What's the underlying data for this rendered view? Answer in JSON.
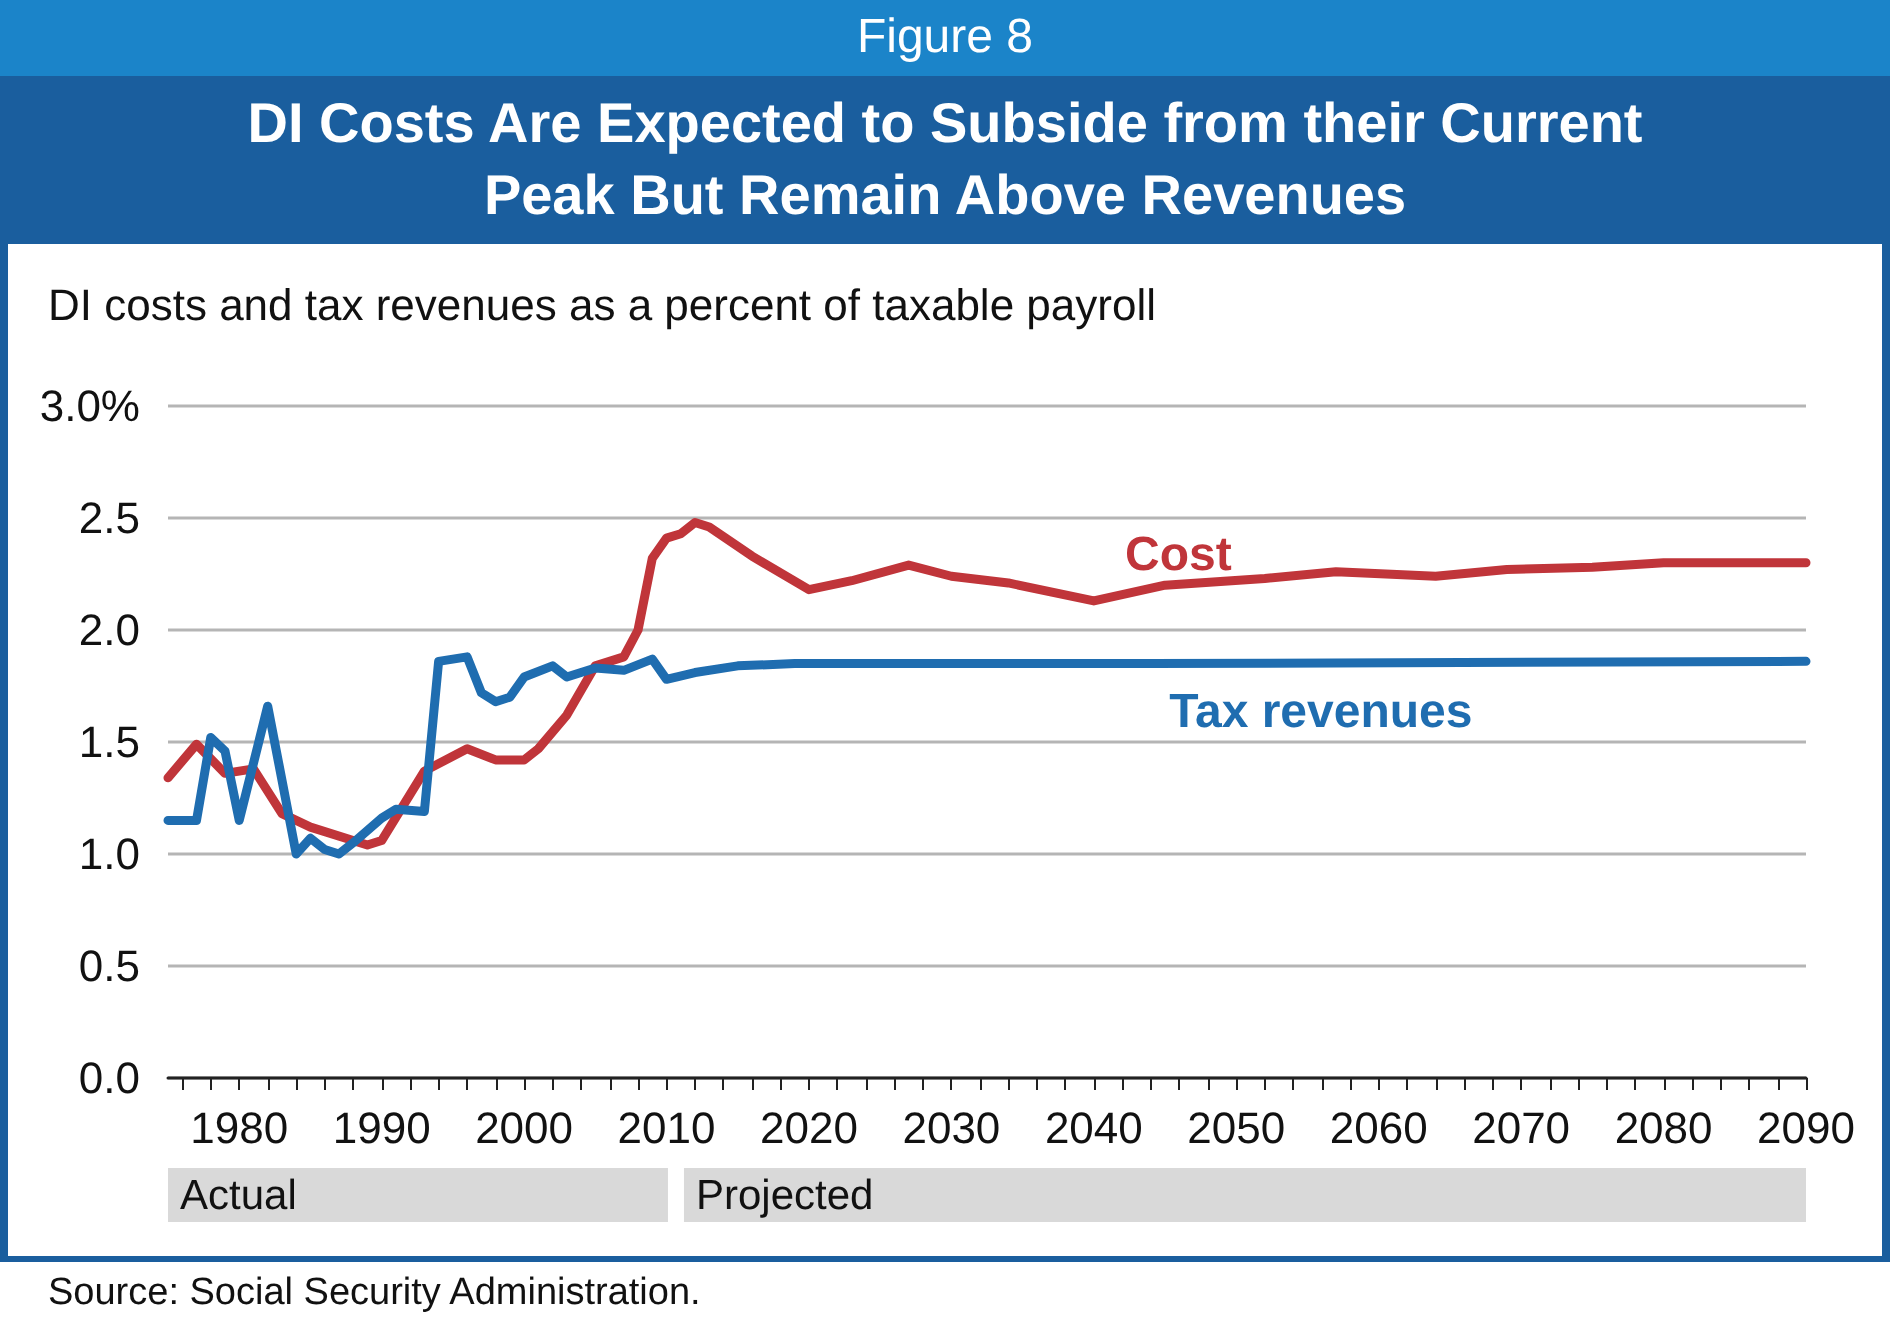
{
  "chart_data": {
    "type": "line",
    "subtitle": "Figure 8",
    "title": "DI Costs Are Expected to Subside from their Current Peak But Remain Above Revenues",
    "ylabel": "DI costs and tax revenues as a percent of taxable payroll",
    "annotations": [
      "Source: Social Security Administration.",
      "Actual",
      "Projected"
    ],
    "series": [
      {
        "name": "Cost",
        "color": "#c0353a",
        "x": [
          1975,
          1977,
          1979,
          1981,
          1983,
          1985,
          1989,
          1990,
          1993,
          1996,
          1998,
          2000,
          2001,
          2003,
          2005,
          2007,
          2008,
          2009,
          2010,
          2011,
          2012,
          2013,
          2016,
          2020,
          2023,
          2027,
          2030,
          2034,
          2040,
          2045,
          2052,
          2057,
          2064,
          2069,
          2075,
          2080,
          2090
        ],
        "values": [
          1.34,
          1.49,
          1.36,
          1.38,
          1.18,
          1.12,
          1.04,
          1.06,
          1.37,
          1.47,
          1.42,
          1.42,
          1.47,
          1.62,
          1.84,
          1.88,
          2.0,
          2.32,
          2.41,
          2.43,
          2.48,
          2.46,
          2.33,
          2.18,
          2.22,
          2.29,
          2.24,
          2.21,
          2.13,
          2.2,
          2.23,
          2.26,
          2.24,
          2.27,
          2.28,
          2.3,
          2.3
        ]
      },
      {
        "name": "Tax revenues",
        "color": "#1f6db0",
        "x": [
          1975,
          1977,
          1978,
          1979,
          1980,
          1982,
          1984,
          1985,
          1986,
          1987,
          1988,
          1990,
          1991,
          1993,
          1994,
          1996,
          1997,
          1998,
          1999,
          2000,
          2002,
          2003,
          2005,
          2007,
          2009,
          2010,
          2012,
          2015,
          2019,
          2044,
          2090
        ],
        "values": [
          1.15,
          1.15,
          1.52,
          1.46,
          1.15,
          1.66,
          1.0,
          1.07,
          1.02,
          1.0,
          1.05,
          1.16,
          1.2,
          1.19,
          1.86,
          1.88,
          1.72,
          1.68,
          1.7,
          1.79,
          1.84,
          1.79,
          1.83,
          1.82,
          1.87,
          1.78,
          1.81,
          1.84,
          1.85,
          1.85,
          1.86
        ]
      }
    ],
    "xlim": [
      1975,
      2090
    ],
    "xticks": [
      {
        "value": 1976,
        "label": null
      },
      {
        "value": 1978,
        "label": null
      },
      1980,
      {
        "value": 1982,
        "label": null
      },
      {
        "value": 1984,
        "label": null
      },
      {
        "value": 1986,
        "label": null
      },
      {
        "value": 1988,
        "label": null
      },
      1990,
      {
        "value": 1992,
        "label": null
      },
      {
        "value": 1994,
        "label": null
      },
      {
        "value": 1996,
        "label": null
      },
      {
        "value": 1998,
        "label": null
      },
      2000,
      {
        "value": 2002,
        "label": null
      },
      {
        "value": 2004,
        "label": null
      },
      {
        "value": 2006,
        "label": null
      },
      {
        "value": 2008,
        "label": null
      },
      2010,
      {
        "value": 2012,
        "label": null
      },
      {
        "value": 2014,
        "label": null
      },
      {
        "value": 2016,
        "label": null
      },
      {
        "value": 2018,
        "label": null
      },
      2020,
      {
        "value": 2022,
        "label": null
      },
      {
        "value": 2024,
        "label": null
      },
      {
        "value": 2026,
        "label": null
      },
      {
        "value": 2028,
        "label": null
      },
      2030,
      {
        "value": 2032,
        "label": null
      },
      {
        "value": 2034,
        "label": null
      },
      {
        "value": 2036,
        "label": null
      },
      {
        "value": 2038,
        "label": null
      },
      2040,
      {
        "value": 2042,
        "label": null
      },
      {
        "value": 2044,
        "label": null
      },
      {
        "value": 2046,
        "label": null
      },
      {
        "value": 2048,
        "label": null
      },
      2050,
      {
        "value": 2052,
        "label": null
      },
      {
        "value": 2054,
        "label": null
      },
      {
        "value": 2056,
        "label": null
      },
      {
        "value": 2058,
        "label": null
      },
      2060,
      {
        "value": 2062,
        "label": null
      },
      {
        "value": 2064,
        "label": null
      },
      {
        "value": 2066,
        "label": null
      },
      {
        "value": 2068,
        "label": null
      },
      2070,
      {
        "value": 2072,
        "label": null
      },
      {
        "value": 2074,
        "label": null
      },
      {
        "value": 2076,
        "label": null
      },
      {
        "value": 2078,
        "label": null
      },
      2080,
      {
        "value": 2082,
        "label": null
      },
      {
        "value": 2084,
        "label": null
      },
      {
        "value": 2086,
        "label": null
      },
      {
        "value": 2088,
        "label": null
      },
      2090
    ],
    "ylim": [
      0,
      3
    ],
    "yticks": [
      {
        "value": 0,
        "label": "0.0"
      },
      0.5,
      {
        "value": 1,
        "label": "1.0"
      },
      1.5,
      {
        "value": 2,
        "label": "2.0"
      },
      2.5,
      {
        "value": 3,
        "label": "3.0%"
      }
    ],
    "grid": "y",
    "legend": false
  }
}
